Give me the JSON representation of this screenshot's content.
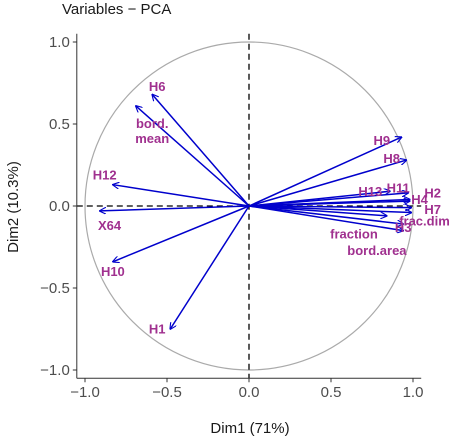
{
  "chart_data": {
    "type": "scatter",
    "subtype": "pca-variable-correlation-circle",
    "title": "Variables − PCA",
    "xlabel": "Dim1 (71%)",
    "ylabel": "Dim2 (10.3%)",
    "xlim": [
      -1.05,
      1.05
    ],
    "ylim": [
      -1.05,
      1.05
    ],
    "xticks": [
      -1.0,
      -0.5,
      0.0,
      0.5,
      1.0
    ],
    "xtick_labels": [
      "−1.0",
      "−0.5",
      "0.0",
      "0.5",
      "1.0"
    ],
    "yticks": [
      -1.0,
      -0.5,
      0.0,
      0.5,
      1.0
    ],
    "ytick_labels": [
      "−1.0",
      "−0.5",
      "0.0",
      "0.5",
      "1.0"
    ],
    "grid": false,
    "unit_circle": true,
    "reference_lines": "dashed at x=0 and y=0",
    "arrow_color": "#0000cc",
    "label_color": "#a0308f",
    "circle_color": "#aaaaaa",
    "variables": [
      {
        "name": "H6",
        "x": -0.59,
        "y": 0.68,
        "lx": -0.56,
        "ly": 0.73
      },
      {
        "name": "bord.\nmean",
        "x": -0.69,
        "y": 0.61,
        "lx": -0.59,
        "ly": 0.46
      },
      {
        "name": "H9",
        "x": 0.93,
        "y": 0.42,
        "lx": 0.81,
        "ly": 0.4
      },
      {
        "name": "H8",
        "x": 0.96,
        "y": 0.28,
        "lx": 0.87,
        "ly": 0.29
      },
      {
        "name": "H13",
        "x": 0.86,
        "y": 0.09,
        "lx": 0.74,
        "ly": 0.09
      },
      {
        "name": "H11",
        "x": 0.97,
        "y": 0.08,
        "lx": 0.91,
        "ly": 0.11
      },
      {
        "name": "H4",
        "x": 0.98,
        "y": 0.04,
        "lx": 1.04,
        "ly": 0.04
      },
      {
        "name": "H2",
        "x": 0.98,
        "y": 0.03,
        "lx": 1.12,
        "ly": 0.08
      },
      {
        "name": "H7",
        "x": 0.99,
        "y": -0.01,
        "lx": 1.12,
        "ly": -0.02
      },
      {
        "name": "frac.dim",
        "x": 0.99,
        "y": -0.04,
        "lx": 1.07,
        "ly": -0.09
      },
      {
        "name": "fraction",
        "x": 0.84,
        "y": -0.06,
        "lx": 0.64,
        "ly": -0.17
      },
      {
        "name": "bord.area",
        "x": 0.94,
        "y": -0.15,
        "lx": 0.78,
        "ly": -0.27
      },
      {
        "name": "H3",
        "x": 0.94,
        "y": -0.11,
        "lx": 0.94,
        "ly": -0.13
      },
      {
        "name": "H12",
        "x": -0.83,
        "y": 0.13,
        "lx": -0.88,
        "ly": 0.19
      },
      {
        "name": "X64",
        "x": -0.91,
        "y": -0.03,
        "lx": -0.85,
        "ly": -0.12
      },
      {
        "name": "H10",
        "x": -0.83,
        "y": -0.34,
        "lx": -0.83,
        "ly": -0.4
      },
      {
        "name": "H1",
        "x": -0.48,
        "y": -0.75,
        "lx": -0.56,
        "ly": -0.75
      }
    ]
  }
}
